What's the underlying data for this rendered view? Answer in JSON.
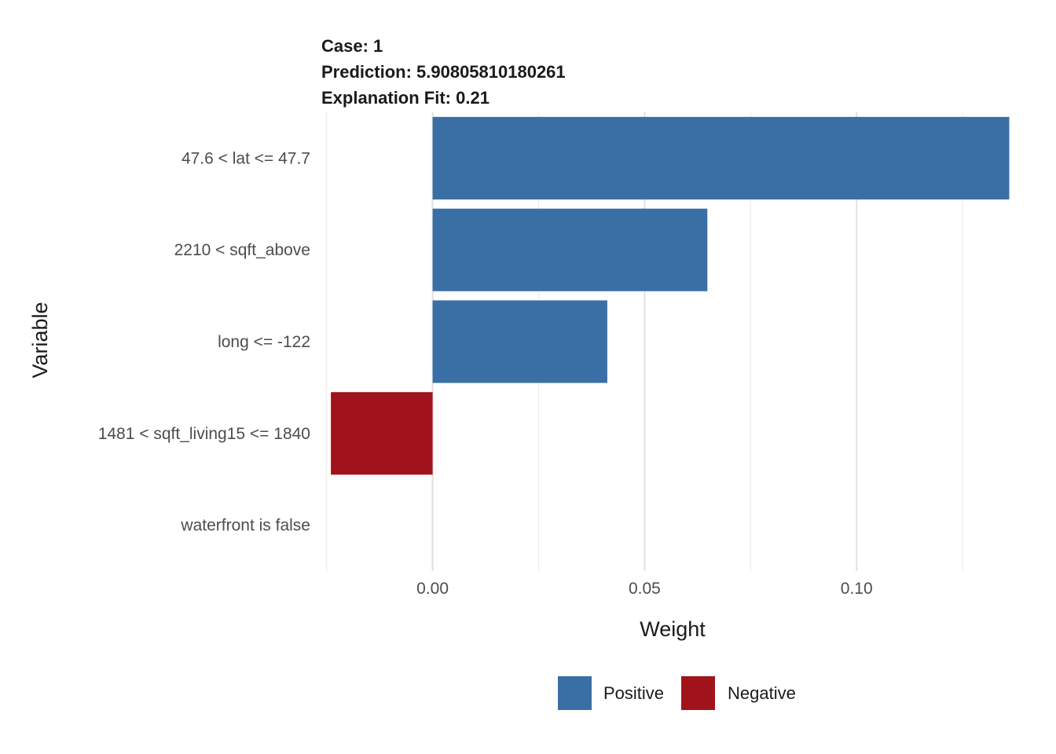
{
  "header": {
    "case": "Case: 1",
    "prediction": "Prediction: 5.90805810180261",
    "fit": "Explanation Fit: 0.21"
  },
  "chart_data": {
    "type": "bar",
    "orientation": "horizontal",
    "categories": [
      "47.6 < lat <= 47.7",
      "2210 < sqft_above",
      "long <= -122",
      "1481 < sqft_living15 <= 1840",
      "waterfront is false"
    ],
    "values": [
      0.136,
      0.0648,
      0.0412,
      -0.024,
      0.0
    ],
    "signs": [
      "Positive",
      "Positive",
      "Positive",
      "Negative",
      "Positive"
    ],
    "xlabel": "Weight",
    "ylabel": "Variable",
    "xlim": [
      -0.0255,
      0.1385
    ],
    "xticks": [
      0.0,
      0.05,
      0.1
    ],
    "xtick_labels": [
      "0.00",
      "0.05",
      "0.10"
    ],
    "minor_gridlines": [
      -0.025,
      0.025,
      0.075,
      0.125
    ],
    "legend": {
      "position": "bottom",
      "entries": [
        {
          "label": "Positive",
          "color": "#3A6FA6"
        },
        {
          "label": "Negative",
          "color": "#A1131B"
        }
      ]
    }
  }
}
